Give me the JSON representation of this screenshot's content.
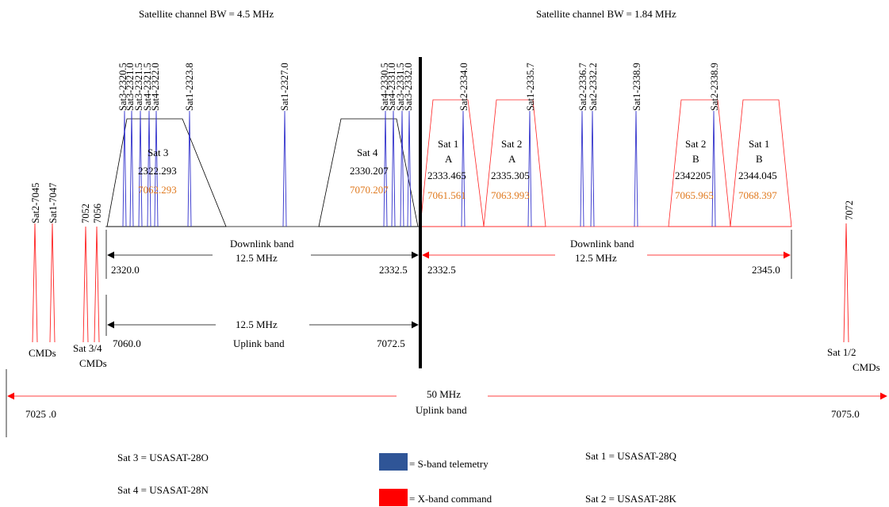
{
  "headers": {
    "left": "Satellite channel BW = 4.5 MHz",
    "right": "Satellite channel BW = 1.84 MHz"
  },
  "channel_labels": [
    "Sat3-2320.5",
    "Sat3-2321.0",
    "Sat3-2321.5",
    "Sat4-2321.5",
    "Sat4-2322.0",
    "Sat1-2323.8",
    "Sat1-2327.0",
    "Sat4-2330.5",
    "Sat4-2331.0",
    "Sat3-2331.5",
    "Sat3-2332.0",
    "Sat2-2334.0",
    "Sat1-2335.7",
    "Sat2-2336.7",
    "Sat2-2332.2",
    "Sat1-2338.9",
    "Sat2-2338.9"
  ],
  "command_labels": [
    "Sat2-7045",
    "Sat1-7047",
    "7052",
    "7056",
    "7072"
  ],
  "channels": [
    {
      "name": "Sat 3",
      "sub": "",
      "freq": "2322.293",
      "uplink": "7062.293"
    },
    {
      "name": "Sat 4",
      "sub": "",
      "freq": "2330.207",
      "uplink": "7070.207"
    },
    {
      "name": "Sat 1",
      "sub": "A",
      "freq": "2333.465",
      "uplink": "7061.561"
    },
    {
      "name": "Sat 2",
      "sub": "A",
      "freq": "2335.305",
      "uplink": "7063.993"
    },
    {
      "name": "Sat 2",
      "sub": "B",
      "freq": "2342205",
      "uplink": "7065.965"
    },
    {
      "name": "Sat 1",
      "sub": "B",
      "freq": "2344.045",
      "uplink": "7068.397"
    }
  ],
  "bands": {
    "downlink_left": {
      "title": "Downlink band",
      "bw": "12.5 MHz",
      "start": "2320.0",
      "end": "2332.5"
    },
    "downlink_right": {
      "title": "Downlink band",
      "bw": "12.5 MHz",
      "start": "2332.5",
      "end": "2345.0"
    },
    "uplink": {
      "bw": "12.5 MHz",
      "title": "Uplink band",
      "start": "7060.0",
      "end": "7072.5"
    },
    "uplink_total": {
      "bw": "50 MHz",
      "title": "Uplink band",
      "start": "7025 .0",
      "end": "7075.0"
    }
  },
  "cmd_groups": {
    "left_cmds": "CMDs",
    "sat34_line1": "Sat 3/4",
    "sat34_line2": "CMDs",
    "sat12_line1": "Sat 1/2",
    "sat12_line2": "CMDs"
  },
  "legend": {
    "sat3": "Sat 3 = USASAT-28O",
    "sat4": "Sat 4 = USASAT-28N",
    "telemetry": "= S-band telemetry",
    "command": "= X-band command",
    "sat1": "Sat 1 = USASAT-28Q",
    "sat2": "Sat 2 = USASAT-28K"
  },
  "colors": {
    "telemetry": "#2f5597",
    "command": "#ff0000",
    "spike_blue": "#3333cc",
    "spike_red": "#ff2222",
    "uplink_text": "#e07a1f"
  }
}
